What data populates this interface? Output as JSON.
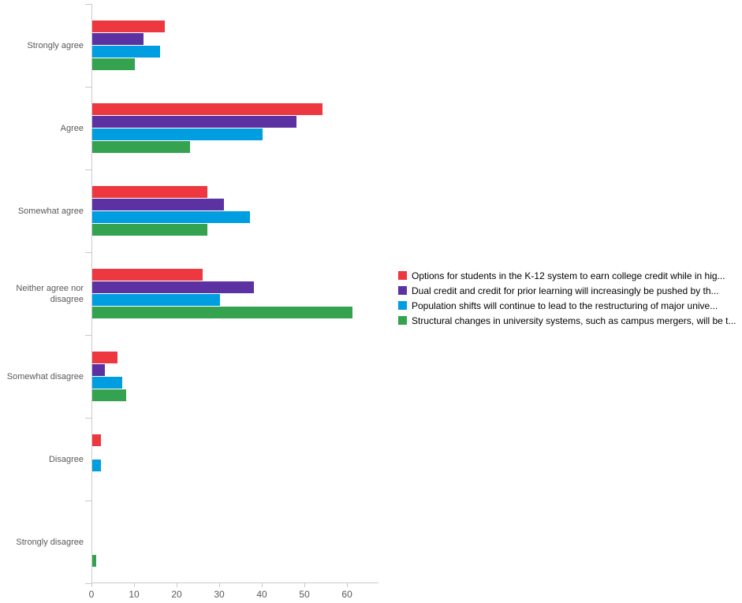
{
  "chart_data": {
    "type": "bar",
    "orientation": "horizontal",
    "title": "",
    "xlabel": "",
    "ylabel": "",
    "categories": [
      "Strongly agree",
      "Agree",
      "Somewhat agree",
      "Neither agree nor disagree",
      "Somewhat disagree",
      "Disagree",
      "Strongly disagree"
    ],
    "series": [
      {
        "name": "Options for students in the K-12 system to earn college credit while in hig...",
        "color": "#ed3840",
        "values": [
          17,
          54,
          27,
          26,
          6,
          2,
          0
        ]
      },
      {
        "name": "Dual credit and credit for prior learning will increasingly be pushed by th...",
        "color": "#5c32a2",
        "values": [
          12,
          48,
          31,
          38,
          3,
          0,
          0
        ]
      },
      {
        "name": "Population shifts will continue to lead to the restructuring of major unive...",
        "color": "#009ee0",
        "values": [
          16,
          40,
          37,
          30,
          7,
          2,
          0
        ]
      },
      {
        "name": "Structural changes in university systems, such as campus mergers, will be t...",
        "color": "#35a24f",
        "values": [
          10,
          23,
          27,
          61,
          8,
          0,
          1
        ]
      }
    ],
    "xticks": [
      0,
      10,
      20,
      30,
      40,
      50,
      60
    ],
    "xlim": [
      0,
      67.2
    ],
    "grid": false,
    "legend_position": "right",
    "axis_color": "#c9c9c9",
    "label_color": "#595959",
    "legend_text_color": "#000000"
  }
}
